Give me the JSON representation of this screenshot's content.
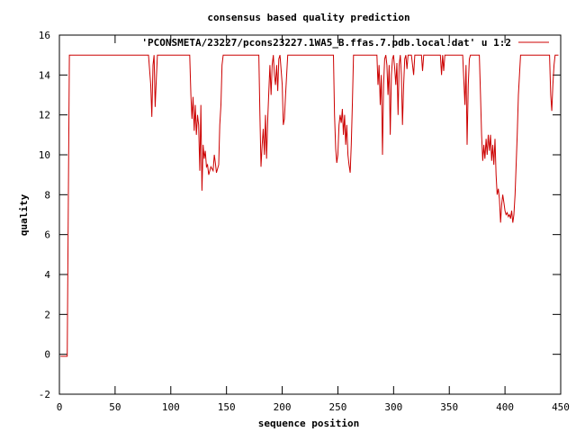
{
  "chart_data": {
    "type": "line",
    "title": "consensus based quality prediction",
    "xlabel": "sequence position",
    "ylabel": "quality",
    "xlim": [
      0,
      450
    ],
    "ylim": [
      -2,
      16
    ],
    "xticks": [
      0,
      50,
      100,
      150,
      200,
      250,
      300,
      350,
      400,
      450
    ],
    "yticks": [
      -2,
      0,
      2,
      4,
      6,
      8,
      10,
      12,
      14,
      16
    ],
    "grid": false,
    "legend_position": "top-right",
    "series": [
      {
        "name": "'PCONSMETA/23227/pcons23227.1WA5_B.ffas.7.pdb.local.dat' u 1:2",
        "color": "#cc0000",
        "points": [
          [
            1,
            -0.1
          ],
          [
            7,
            -0.1
          ],
          [
            8,
            7.5
          ],
          [
            9,
            15
          ],
          [
            10,
            15
          ],
          [
            80,
            15
          ],
          [
            82,
            13.5
          ],
          [
            83,
            11.9
          ],
          [
            84,
            14.5
          ],
          [
            85,
            15
          ],
          [
            86,
            12.4
          ],
          [
            87,
            13.8
          ],
          [
            88,
            15
          ],
          [
            117,
            15
          ],
          [
            118,
            13
          ],
          [
            119,
            11.8
          ],
          [
            120,
            12.9
          ],
          [
            121,
            11.2
          ],
          [
            122,
            12.5
          ],
          [
            123,
            11
          ],
          [
            124,
            12
          ],
          [
            125,
            11.5
          ],
          [
            126,
            9.2
          ],
          [
            127,
            12.5
          ],
          [
            128,
            8.2
          ],
          [
            129,
            10.5
          ],
          [
            130,
            9.8
          ],
          [
            131,
            10.2
          ],
          [
            132,
            9.4
          ],
          [
            133,
            9.5
          ],
          [
            134,
            9
          ],
          [
            136,
            9.4
          ],
          [
            138,
            9.2
          ],
          [
            139,
            10
          ],
          [
            140,
            9.6
          ],
          [
            141,
            9.1
          ],
          [
            143,
            9.5
          ],
          [
            144,
            11.5
          ],
          [
            145,
            12.5
          ],
          [
            146,
            14.5
          ],
          [
            147,
            15
          ],
          [
            179,
            15
          ],
          [
            180,
            12
          ],
          [
            181,
            9.4
          ],
          [
            182,
            10.5
          ],
          [
            183,
            11.3
          ],
          [
            184,
            10
          ],
          [
            185,
            12
          ],
          [
            186,
            9.8
          ],
          [
            187,
            11.8
          ],
          [
            188,
            13.2
          ],
          [
            189,
            14.5
          ],
          [
            190,
            13
          ],
          [
            191,
            14.5
          ],
          [
            192,
            15
          ],
          [
            193,
            14
          ],
          [
            194,
            13.5
          ],
          [
            195,
            14.5
          ],
          [
            196,
            13.2
          ],
          [
            197,
            14.8
          ],
          [
            198,
            15
          ],
          [
            199,
            14.3
          ],
          [
            200,
            13.5
          ],
          [
            201,
            11.5
          ],
          [
            202,
            11.8
          ],
          [
            203,
            13
          ],
          [
            204,
            14
          ],
          [
            205,
            15
          ],
          [
            246,
            15
          ],
          [
            247,
            12
          ],
          [
            248,
            10.3
          ],
          [
            249,
            9.6
          ],
          [
            250,
            10
          ],
          [
            251,
            11.5
          ],
          [
            252,
            12
          ],
          [
            253,
            11.6
          ],
          [
            254,
            12.3
          ],
          [
            255,
            11
          ],
          [
            256,
            12
          ],
          [
            257,
            10.5
          ],
          [
            258,
            11.5
          ],
          [
            259,
            10
          ],
          [
            260,
            9.5
          ],
          [
            261,
            9.1
          ],
          [
            262,
            10.5
          ],
          [
            263,
            12.5
          ],
          [
            264,
            15
          ],
          [
            285,
            15
          ],
          [
            286,
            13.5
          ],
          [
            287,
            14.5
          ],
          [
            288,
            12.5
          ],
          [
            289,
            14
          ],
          [
            290,
            10
          ],
          [
            291,
            13.5
          ],
          [
            292,
            14.8
          ],
          [
            293,
            15
          ],
          [
            294,
            14.5
          ],
          [
            295,
            13
          ],
          [
            296,
            14.5
          ],
          [
            297,
            11
          ],
          [
            298,
            14
          ],
          [
            299,
            14.8
          ],
          [
            300,
            15
          ],
          [
            301,
            14.3
          ],
          [
            302,
            13.5
          ],
          [
            303,
            14.6
          ],
          [
            304,
            12
          ],
          [
            305,
            14.5
          ],
          [
            306,
            15
          ],
          [
            307,
            14
          ],
          [
            308,
            11.5
          ],
          [
            309,
            13.5
          ],
          [
            310,
            14.8
          ],
          [
            311,
            15
          ],
          [
            312,
            14.3
          ],
          [
            313,
            15
          ],
          [
            316,
            15
          ],
          [
            317,
            14.5
          ],
          [
            318,
            14
          ],
          [
            319,
            15
          ],
          [
            325,
            15
          ],
          [
            326,
            14.2
          ],
          [
            327,
            15
          ],
          [
            342,
            15
          ],
          [
            343,
            14
          ],
          [
            344,
            15
          ],
          [
            345,
            14.2
          ],
          [
            346,
            15
          ],
          [
            362,
            15
          ],
          [
            363,
            13.8
          ],
          [
            364,
            12.5
          ],
          [
            365,
            14.5
          ],
          [
            366,
            10.5
          ],
          [
            367,
            13.5
          ],
          [
            368,
            14.8
          ],
          [
            369,
            15
          ],
          [
            377,
            15
          ],
          [
            378,
            13
          ],
          [
            379,
            11
          ],
          [
            380,
            9.7
          ],
          [
            381,
            10.5
          ],
          [
            382,
            9.8
          ],
          [
            383,
            10.8
          ],
          [
            384,
            10
          ],
          [
            385,
            11
          ],
          [
            386,
            10.2
          ],
          [
            387,
            11
          ],
          [
            388,
            9.7
          ],
          [
            389,
            10.5
          ],
          [
            390,
            9.5
          ],
          [
            391,
            10.8
          ],
          [
            392,
            9
          ],
          [
            393,
            8
          ],
          [
            394,
            8.3
          ],
          [
            395,
            7.8
          ],
          [
            396,
            6.6
          ],
          [
            397,
            7.5
          ],
          [
            398,
            8
          ],
          [
            399,
            7.6
          ],
          [
            400,
            7.2
          ],
          [
            401,
            7
          ],
          [
            402,
            7.1
          ],
          [
            403,
            6.9
          ],
          [
            404,
            7
          ],
          [
            405,
            6.8
          ],
          [
            406,
            7.2
          ],
          [
            407,
            6.6
          ],
          [
            408,
            7
          ],
          [
            409,
            8
          ],
          [
            410,
            9.5
          ],
          [
            411,
            11
          ],
          [
            412,
            13
          ],
          [
            413,
            14
          ],
          [
            414,
            15
          ],
          [
            440,
            15
          ],
          [
            441,
            13
          ],
          [
            442,
            12.2
          ],
          [
            443,
            13.5
          ],
          [
            444,
            14.5
          ],
          [
            445,
            15
          ],
          [
            448,
            15
          ]
        ]
      }
    ]
  }
}
